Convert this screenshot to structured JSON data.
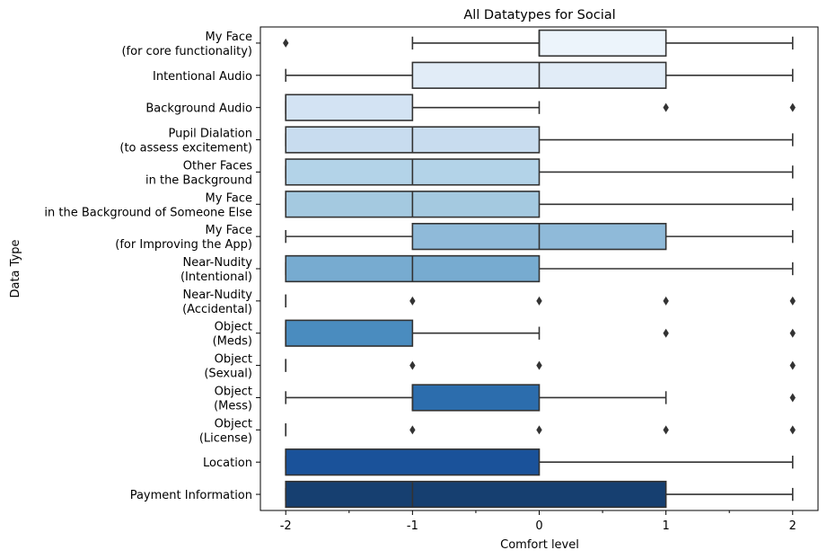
{
  "chart_data": {
    "type": "box",
    "title": "All Datatypes for Social",
    "xlabel": "Comfort level",
    "ylabel": "Data Type",
    "xlim": [
      -2.2,
      2.2
    ],
    "xticks": [
      {
        "value": -2,
        "label": "-2"
      },
      {
        "value": -1,
        "label": "-1"
      },
      {
        "value": 0,
        "label": "0"
      },
      {
        "value": 1,
        "label": "1"
      },
      {
        "value": 2,
        "label": "2"
      }
    ],
    "minor_xticks": [
      -1.5,
      -0.5,
      0.5,
      1.5
    ],
    "grid": false,
    "categories": [
      {
        "lines": [
          "My Face",
          "(for core functionality)"
        ],
        "q1": 0,
        "median": 0,
        "q3": 1,
        "whisker_low": -1,
        "whisker_high": 2,
        "outliers": [
          -2
        ],
        "color": "#ecf4fb"
      },
      {
        "lines": [
          "Intentional Audio"
        ],
        "q1": -1,
        "median": 0,
        "q3": 1,
        "whisker_low": -2,
        "whisker_high": 2,
        "outliers": [],
        "color": "#e1ecf7"
      },
      {
        "lines": [
          "Background Audio"
        ],
        "q1": -2,
        "median": -2,
        "q3": -1,
        "whisker_low": -2,
        "whisker_high": 0,
        "outliers": [
          1,
          2
        ],
        "color": "#d3e3f3"
      },
      {
        "lines": [
          "Pupil Dialation",
          "(to assess excitement)"
        ],
        "q1": -2,
        "median": -1,
        "q3": 0,
        "whisker_low": -2,
        "whisker_high": 2,
        "outliers": [],
        "color": "#c8dcef"
      },
      {
        "lines": [
          "Other Faces",
          "in the Background"
        ],
        "q1": -2,
        "median": -1,
        "q3": 0,
        "whisker_low": -2,
        "whisker_high": 2,
        "outliers": [],
        "color": "#b3d3e8"
      },
      {
        "lines": [
          "My Face",
          "in the Background of Someone Else"
        ],
        "q1": -2,
        "median": -1,
        "q3": 0,
        "whisker_low": -2,
        "whisker_high": 2,
        "outliers": [],
        "color": "#a4c9e0"
      },
      {
        "lines": [
          "My Face",
          "(for Improving the App)"
        ],
        "q1": -1,
        "median": 0,
        "q3": 1,
        "whisker_low": -2,
        "whisker_high": 2,
        "outliers": [],
        "color": "#8fbad9"
      },
      {
        "lines": [
          "Near-Nudity",
          "(Intentional)"
        ],
        "q1": -2,
        "median": -1,
        "q3": 0,
        "whisker_low": -2,
        "whisker_high": 2,
        "outliers": [],
        "color": "#77abd0"
      },
      {
        "lines": [
          "Near-Nudity",
          "(Accidental)"
        ],
        "q1": -2,
        "median": -2,
        "q3": -2,
        "whisker_low": -2,
        "whisker_high": -2,
        "outliers": [
          -1,
          0,
          1,
          2
        ],
        "color": "#5b9bc8"
      },
      {
        "lines": [
          "Object",
          "(Meds)"
        ],
        "q1": -2,
        "median": -2,
        "q3": -1,
        "whisker_low": -2,
        "whisker_high": 0,
        "outliers": [
          1,
          2
        ],
        "color": "#4a8cbf"
      },
      {
        "lines": [
          "Object",
          "(Sexual)"
        ],
        "q1": -2,
        "median": -2,
        "q3": -2,
        "whisker_low": -2,
        "whisker_high": -2,
        "outliers": [
          -1,
          0,
          2
        ],
        "color": "#3b7db8"
      },
      {
        "lines": [
          "Object",
          "(Mess)"
        ],
        "q1": -1,
        "median": -1,
        "q3": 0,
        "whisker_low": -2,
        "whisker_high": 1,
        "outliers": [
          2
        ],
        "color": "#2c6dad"
      },
      {
        "lines": [
          "Object",
          "(License)"
        ],
        "q1": -2,
        "median": -2,
        "q3": -2,
        "whisker_low": -2,
        "whisker_high": -2,
        "outliers": [
          -1,
          0,
          1,
          2
        ],
        "color": "#2060a6"
      },
      {
        "lines": [
          "Location"
        ],
        "q1": -2,
        "median": -2,
        "q3": 0,
        "whisker_low": -2,
        "whisker_high": 2,
        "outliers": [],
        "color": "#1a529a"
      },
      {
        "lines": [
          "Payment Information"
        ],
        "q1": -2,
        "median": -1,
        "q3": 1,
        "whisker_low": -2,
        "whisker_high": 2,
        "outliers": [],
        "color": "#163f70"
      }
    ]
  }
}
